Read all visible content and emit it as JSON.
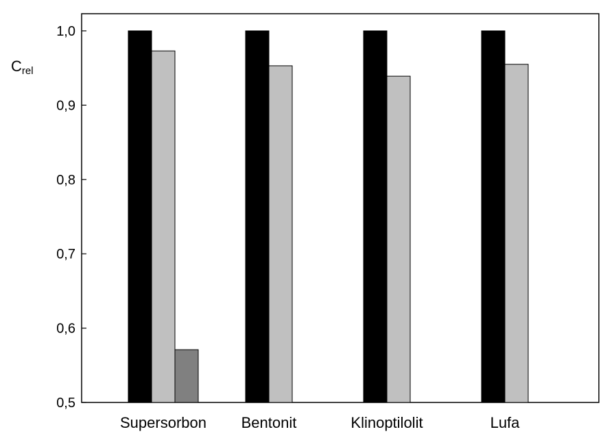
{
  "chart_data": {
    "type": "bar",
    "categories": [
      "Supersorbon",
      "Bentonit",
      "Klinoptilolit",
      "Lufa"
    ],
    "series": [
      {
        "color": "#000000",
        "values": [
          1.0,
          1.0,
          1.0,
          1.0
        ]
      },
      {
        "color": "#c0c0c0",
        "values": [
          0.973,
          0.953,
          0.939,
          0.955
        ]
      },
      {
        "color": "#808080",
        "values": [
          0.571,
          null,
          null,
          null
        ]
      }
    ],
    "ylabel": {
      "main": "C",
      "sub": "rel"
    },
    "ylim": [
      0.5,
      1.0
    ],
    "yticks": [
      "0,5",
      "0,6",
      "0,7",
      "0,8",
      "0,9",
      "1,0"
    ],
    "ytick_values": [
      0.5,
      0.6,
      0.7,
      0.8,
      0.9,
      1.0
    ],
    "grid": false,
    "legend": "none"
  }
}
